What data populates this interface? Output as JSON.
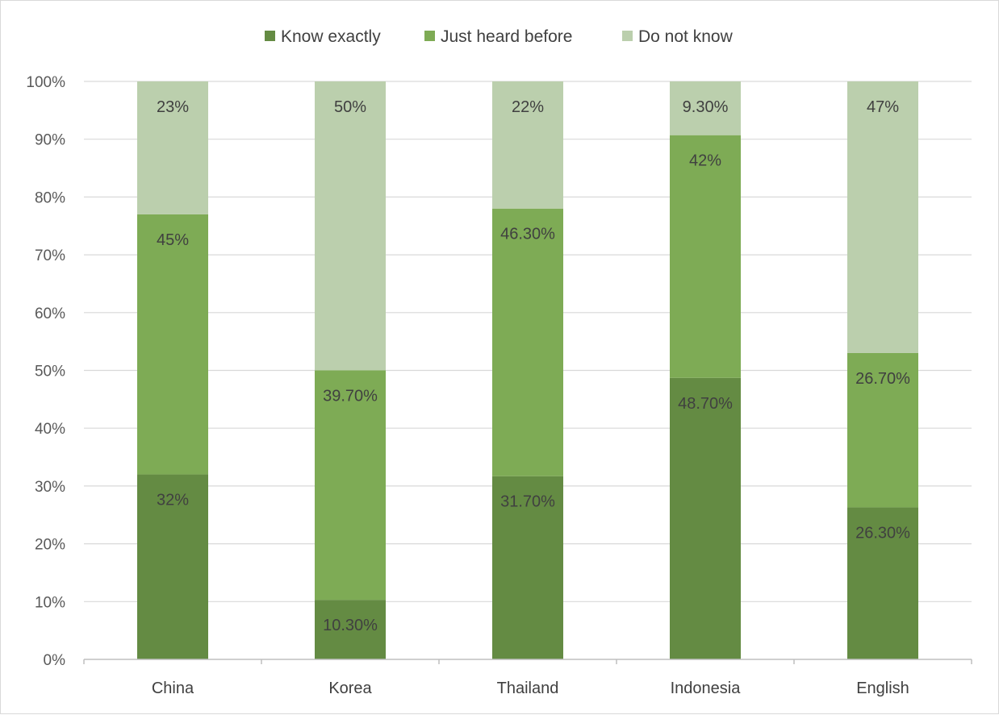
{
  "chart_data": {
    "type": "bar",
    "stacked": true,
    "percent_stacked": true,
    "categories": [
      "China",
      "Korea",
      "Thailand",
      "Indonesia",
      "English"
    ],
    "series": [
      {
        "name": "Know exactly",
        "values": [
          32,
          10.3,
          31.7,
          48.7,
          26.3
        ],
        "labels": [
          "32%",
          "10.30%",
          "31.70%",
          "48.70%",
          "26.30%"
        ],
        "color": "#648b43"
      },
      {
        "name": "Just heard before",
        "values": [
          45,
          39.7,
          46.3,
          42,
          26.7
        ],
        "labels": [
          "45%",
          "39.70%",
          "46.30%",
          "42%",
          "26.70%"
        ],
        "color": "#7eab55"
      },
      {
        "name": "Do not know",
        "values": [
          23,
          50,
          22,
          9.3,
          47
        ],
        "labels": [
          "23%",
          "50%",
          "22%",
          "9.30%",
          "47%"
        ],
        "color": "#bbcfad"
      }
    ],
    "y_ticks": [
      "0%",
      "10%",
      "20%",
      "30%",
      "40%",
      "50%",
      "60%",
      "70%",
      "80%",
      "90%",
      "100%"
    ],
    "ylim": [
      0,
      100
    ],
    "grid": true,
    "legend_position": "top"
  }
}
